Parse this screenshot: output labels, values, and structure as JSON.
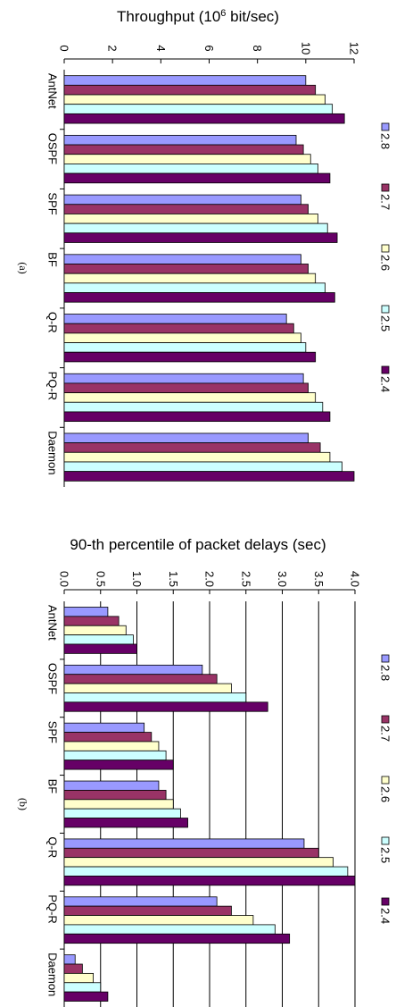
{
  "charts": [
    {
      "title": "Throughput (10",
      "title_sup": "6",
      "title_rest": " bit/sec)",
      "panel_label": "(a)",
      "chart_data": {
        "type": "bar",
        "orientation": "rotated",
        "categories": [
          "AntNet",
          "OSPF",
          "SPF",
          "BF",
          "Q-R",
          "PQ-R",
          "Daemon"
        ],
        "series": [
          {
            "name": "2.8",
            "color": "#9999ff",
            "values": [
              10.0,
              9.6,
              9.8,
              9.8,
              9.2,
              9.9,
              10.1
            ]
          },
          {
            "name": "2.7",
            "color": "#993366",
            "values": [
              10.4,
              9.9,
              10.1,
              10.1,
              9.5,
              10.1,
              10.6
            ]
          },
          {
            "name": "2.6",
            "color": "#ffffcc",
            "values": [
              10.8,
              10.2,
              10.5,
              10.4,
              9.8,
              10.4,
              11.0
            ]
          },
          {
            "name": "2.5",
            "color": "#ccffff",
            "values": [
              11.1,
              10.5,
              10.9,
              10.8,
              10.0,
              10.7,
              11.5
            ]
          },
          {
            "name": "2.4",
            "color": "#660066",
            "values": [
              11.6,
              11.0,
              11.3,
              11.2,
              10.4,
              11.0,
              12.0
            ]
          }
        ],
        "ylim": [
          0,
          12
        ],
        "ticks": [
          "0",
          "2",
          "4",
          "6",
          "8",
          "10",
          "12"
        ],
        "grid": false,
        "legend": "right"
      }
    },
    {
      "title": "90-th percentile of packet delays (sec)",
      "title_sup": "",
      "title_rest": "",
      "panel_label": "(b)",
      "chart_data": {
        "type": "bar",
        "orientation": "rotated",
        "categories": [
          "AntNet",
          "OSPF",
          "SPF",
          "BF",
          "Q-R",
          "PQ-R",
          "Daemon"
        ],
        "series": [
          {
            "name": "2.8",
            "color": "#9999ff",
            "values": [
              0.6,
              1.9,
              1.1,
              1.3,
              3.3,
              2.1,
              0.15
            ]
          },
          {
            "name": "2.7",
            "color": "#993366",
            "values": [
              0.75,
              2.1,
              1.2,
              1.4,
              3.5,
              2.3,
              0.25
            ]
          },
          {
            "name": "2.6",
            "color": "#ffffcc",
            "values": [
              0.85,
              2.3,
              1.3,
              1.5,
              3.7,
              2.6,
              0.4
            ]
          },
          {
            "name": "2.5",
            "color": "#ccffff",
            "values": [
              0.95,
              2.5,
              1.4,
              1.6,
              3.9,
              2.9,
              0.5
            ]
          },
          {
            "name": "2.4",
            "color": "#660066",
            "values": [
              1.0,
              2.8,
              1.5,
              1.7,
              4.0,
              3.1,
              0.6
            ]
          }
        ],
        "ylim": [
          0,
          4
        ],
        "ticks": [
          "0.0",
          "0.5",
          "1.0",
          "1.5",
          "2.0",
          "2.5",
          "3.0",
          "3.5",
          "4.0"
        ],
        "grid": true,
        "legend": "right"
      }
    }
  ]
}
